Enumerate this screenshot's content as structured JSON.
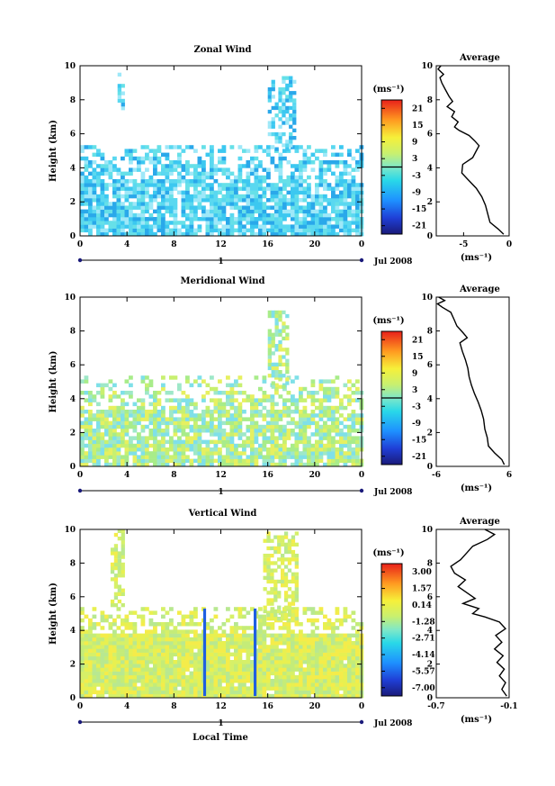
{
  "figure": {
    "x_label": "Local Time",
    "date_label": "Jul 2008",
    "day_label": "1",
    "colorbar_units": "(ms⁻¹)",
    "profile_units": "(ms⁻¹)",
    "profile_title": "Average"
  },
  "chart_data": [
    {
      "type": "heatmap",
      "title": "Zonal Wind",
      "xlabel": "Local Time",
      "ylabel": "Height (km)",
      "x_ticks": [
        "0",
        "4",
        "8",
        "12",
        "16",
        "20",
        "0"
      ],
      "xlim": [
        0,
        24
      ],
      "y_ticks": [
        "0",
        "2",
        "4",
        "6",
        "8",
        "10"
      ],
      "ylim": [
        0,
        10
      ],
      "colorbar": {
        "units": "(ms⁻¹)",
        "ticks": [
          "21",
          "15",
          "9",
          "3",
          "-3",
          "-9",
          "-15",
          "-21"
        ],
        "range": [
          -24,
          24
        ],
        "zero_line": true
      },
      "profile": {
        "title": "Average",
        "xlabel": "(ms⁻¹)",
        "x_ticks": [
          "-5",
          "0"
        ],
        "xlim": [
          -8,
          0
        ],
        "y_ticks": [
          "0",
          "2",
          "4",
          "6",
          "8",
          "10"
        ],
        "ylim": [
          0,
          10
        ],
        "points": [
          [
            -0.6,
            0.1
          ],
          [
            -1.2,
            0.4
          ],
          [
            -2.1,
            0.8
          ],
          [
            -2.3,
            1.2
          ],
          [
            -2.6,
            1.8
          ],
          [
            -3.0,
            2.3
          ],
          [
            -3.6,
            2.8
          ],
          [
            -4.5,
            3.3
          ],
          [
            -5.2,
            3.7
          ],
          [
            -5.1,
            4.2
          ],
          [
            -4.0,
            4.6
          ],
          [
            -3.6,
            5.0
          ],
          [
            -3.3,
            5.3
          ],
          [
            -3.8,
            5.6
          ],
          [
            -4.4,
            5.9
          ],
          [
            -5.5,
            6.2
          ],
          [
            -6.0,
            6.4
          ],
          [
            -5.6,
            6.7
          ],
          [
            -6.3,
            7.0
          ],
          [
            -6.0,
            7.3
          ],
          [
            -6.8,
            7.6
          ],
          [
            -6.2,
            7.9
          ],
          [
            -6.6,
            8.2
          ],
          [
            -7.0,
            8.6
          ],
          [
            -7.4,
            9.0
          ],
          [
            -7.6,
            9.3
          ],
          [
            -7.2,
            9.5
          ],
          [
            -7.8,
            9.8
          ],
          [
            -7.5,
            10.0
          ]
        ]
      }
    },
    {
      "type": "heatmap",
      "title": "Meridional Wind",
      "xlabel": "Local Time",
      "ylabel": "Height (km)",
      "x_ticks": [
        "0",
        "4",
        "8",
        "12",
        "16",
        "20",
        "0"
      ],
      "xlim": [
        0,
        24
      ],
      "y_ticks": [
        "0",
        "2",
        "4",
        "6",
        "8",
        "10"
      ],
      "ylim": [
        0,
        10
      ],
      "colorbar": {
        "units": "(ms⁻¹)",
        "ticks": [
          "21",
          "15",
          "9",
          "3",
          "-3",
          "-9",
          "-15",
          "-21"
        ],
        "range": [
          -24,
          24
        ],
        "zero_line": true
      },
      "profile": {
        "title": "Average",
        "xlabel": "(ms⁻¹)",
        "x_ticks": [
          "-6",
          "6"
        ],
        "xlim": [
          -6,
          6
        ],
        "y_ticks": [
          "0",
          "2",
          "4",
          "6",
          "8",
          "10"
        ],
        "ylim": [
          0,
          10
        ],
        "points": [
          [
            5.2,
            0.1
          ],
          [
            4.8,
            0.4
          ],
          [
            3.6,
            0.8
          ],
          [
            2.6,
            1.2
          ],
          [
            2.4,
            1.7
          ],
          [
            2.0,
            2.2
          ],
          [
            1.8,
            2.8
          ],
          [
            1.4,
            3.3
          ],
          [
            0.9,
            3.8
          ],
          [
            0.3,
            4.3
          ],
          [
            -0.2,
            4.8
          ],
          [
            -0.6,
            5.3
          ],
          [
            -0.8,
            5.8
          ],
          [
            -1.2,
            6.3
          ],
          [
            -1.7,
            6.8
          ],
          [
            -2.1,
            7.3
          ],
          [
            -0.9,
            7.6
          ],
          [
            -1.6,
            7.9
          ],
          [
            -2.6,
            8.3
          ],
          [
            -3.1,
            8.7
          ],
          [
            -3.6,
            9.1
          ],
          [
            -5.0,
            9.4
          ],
          [
            -5.8,
            9.6
          ],
          [
            -4.6,
            9.8
          ],
          [
            -5.6,
            10.0
          ]
        ]
      }
    },
    {
      "type": "heatmap",
      "title": "Vertical Wind",
      "xlabel": "Local Time",
      "ylabel": "Height (km)",
      "x_ticks": [
        "0",
        "4",
        "8",
        "12",
        "16",
        "20",
        "0"
      ],
      "xlim": [
        0,
        24
      ],
      "y_ticks": [
        "0",
        "2",
        "4",
        "6",
        "8",
        "10"
      ],
      "ylim": [
        0,
        10
      ],
      "colorbar": {
        "units": "(ms⁻¹)",
        "ticks": [
          "3.00",
          "1.57",
          "0.14",
          "-1.28",
          "-2.71",
          "-4.14",
          "-5.57",
          "-7.00"
        ],
        "range": [
          -7.7,
          3.7
        ],
        "zero_line": false
      },
      "profile": {
        "title": "Average",
        "xlabel": "(ms⁻¹)",
        "x_ticks": [
          "-0.7",
          "-0.1"
        ],
        "xlim": [
          -0.7,
          -0.1
        ],
        "y_ticks": [
          "0",
          "2",
          "4",
          "6",
          "8",
          "10"
        ],
        "ylim": [
          0,
          10
        ],
        "points": [
          [
            -0.12,
            0.1
          ],
          [
            -0.16,
            0.5
          ],
          [
            -0.13,
            0.9
          ],
          [
            -0.18,
            1.3
          ],
          [
            -0.14,
            1.7
          ],
          [
            -0.2,
            2.1
          ],
          [
            -0.15,
            2.5
          ],
          [
            -0.22,
            2.9
          ],
          [
            -0.16,
            3.3
          ],
          [
            -0.21,
            3.7
          ],
          [
            -0.13,
            4.1
          ],
          [
            -0.18,
            4.5
          ],
          [
            -0.3,
            4.8
          ],
          [
            -0.4,
            5.0
          ],
          [
            -0.35,
            5.3
          ],
          [
            -0.48,
            5.6
          ],
          [
            -0.38,
            5.9
          ],
          [
            -0.44,
            6.2
          ],
          [
            -0.52,
            6.6
          ],
          [
            -0.46,
            7.0
          ],
          [
            -0.55,
            7.4
          ],
          [
            -0.58,
            7.8
          ],
          [
            -0.5,
            8.2
          ],
          [
            -0.45,
            8.6
          ],
          [
            -0.4,
            9.0
          ],
          [
            -0.28,
            9.4
          ],
          [
            -0.22,
            9.7
          ],
          [
            -0.3,
            10.0
          ]
        ]
      }
    }
  ]
}
